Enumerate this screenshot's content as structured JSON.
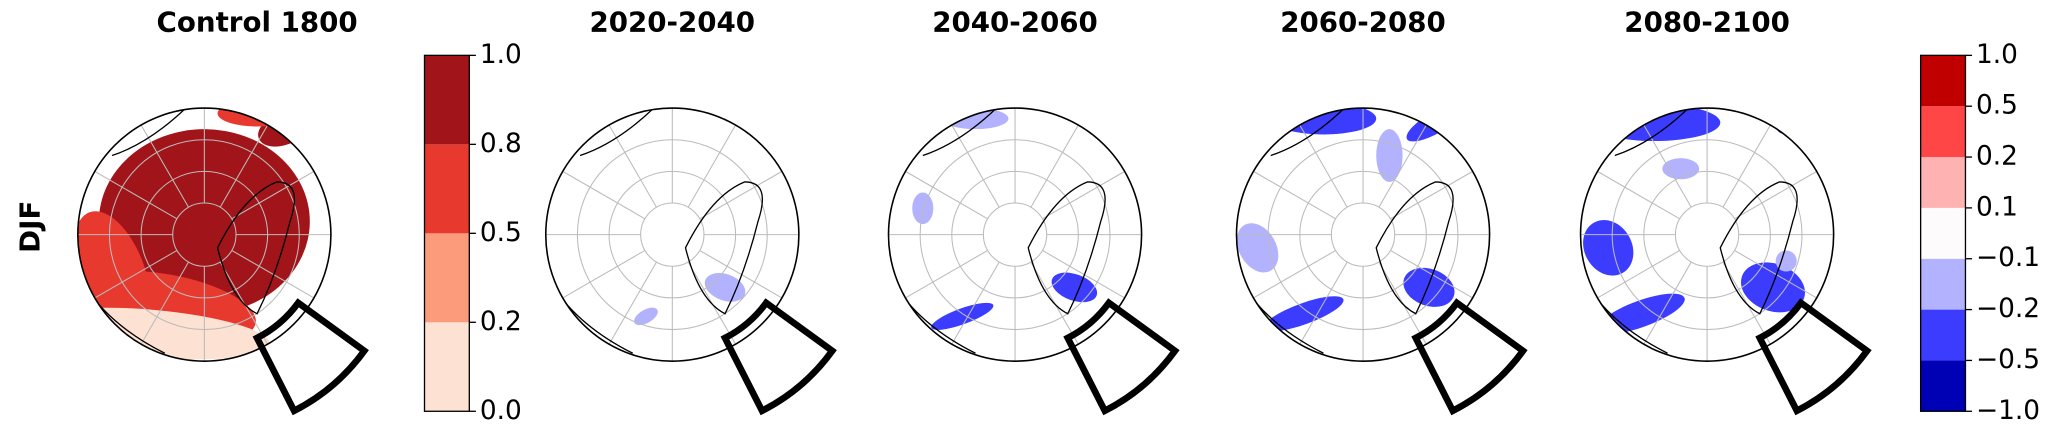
{
  "row_label": "DJF",
  "chart_data": [
    {
      "type": "map",
      "title": "Control 1800",
      "colorbar": 0
    },
    {
      "type": "map",
      "title": "2020-2040",
      "colorbar": 1
    },
    {
      "type": "map",
      "title": "2040-2060",
      "colorbar": 1
    },
    {
      "type": "map",
      "title": "2060-2080",
      "colorbar": 1
    },
    {
      "type": "map",
      "title": "2080-2100",
      "colorbar": 1
    }
  ],
  "colorbars": [
    {
      "ticks": [
        {
          "value": 0,
          "label": "0.0"
        },
        0.2,
        0.5,
        0.8,
        {
          "value": 1,
          "label": "1.0"
        }
      ],
      "colors": [
        "#fde2d4",
        "#fc9a7c",
        "#e8392f",
        "#a11419"
      ]
    },
    {
      "ticks": [
        {
          "value": -1,
          "label": "−1.0"
        },
        {
          "value": -0.5,
          "label": "−0.5"
        },
        {
          "value": -0.2,
          "label": "−0.2"
        },
        {
          "value": -0.1,
          "label": "−0.1"
        },
        0.1,
        0.2,
        0.5,
        {
          "value": 1,
          "label": "1.0"
        }
      ],
      "colors": [
        "#0000b4",
        "#3c3cff",
        "#b2b2ff",
        "#fdfbfb",
        "#ffb2b2",
        "#ff4646",
        "#c00000"
      ]
    }
  ]
}
